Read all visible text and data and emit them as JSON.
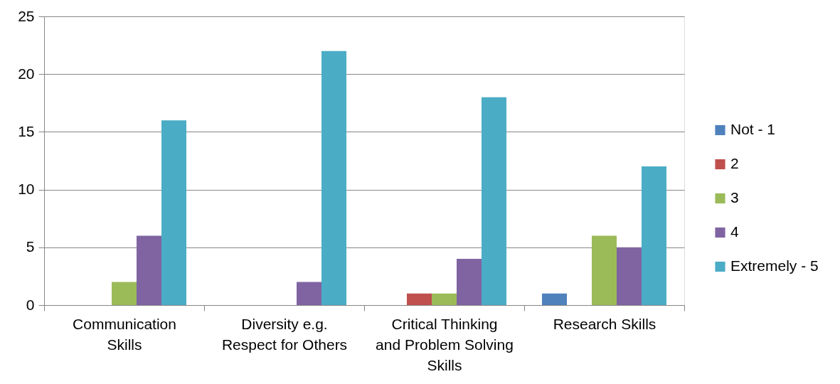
{
  "chart_data": {
    "type": "bar",
    "categories": [
      "Communication Skills",
      "Diversity e.g. Respect for Others",
      "Critical Thinking and Problem Solving Skills",
      "Research Skills"
    ],
    "series": [
      {
        "name": "Not - 1",
        "color": "#4f81bd",
        "values": [
          0,
          0,
          0,
          1
        ]
      },
      {
        "name": "2",
        "color": "#c0504d",
        "values": [
          0,
          0,
          1,
          0
        ]
      },
      {
        "name": "3",
        "color": "#9bbb59",
        "values": [
          2,
          0,
          1,
          6
        ]
      },
      {
        "name": "4",
        "color": "#8064a2",
        "values": [
          6,
          2,
          4,
          5
        ]
      },
      {
        "name": "Extremely - 5",
        "color": "#4bacc6",
        "values": [
          16,
          22,
          18,
          12
        ]
      }
    ],
    "ylim": [
      0,
      25
    ],
    "yticks": [
      0,
      5,
      10,
      15,
      20,
      25
    ],
    "grid": "y",
    "legend": "right"
  }
}
